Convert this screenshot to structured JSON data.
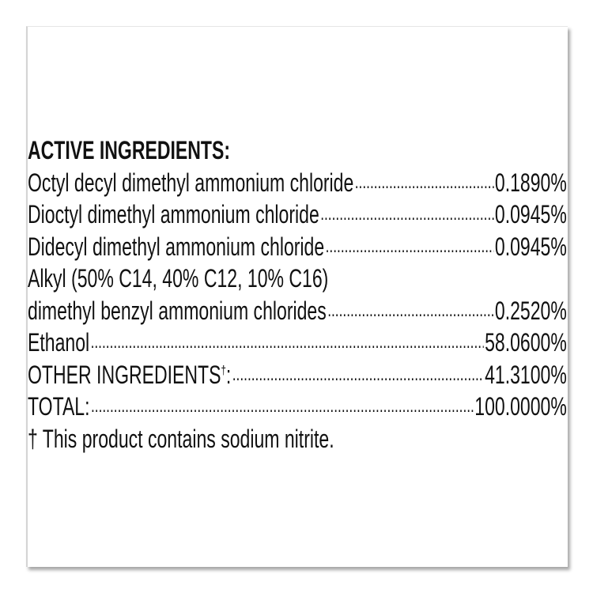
{
  "heading": "ACTIVE INGREDIENTS:",
  "ingredients": [
    {
      "name": "Octyl decyl dimethyl ammonium chloride",
      "value": "0.1890%"
    },
    {
      "name": "Dioctyl dimethyl ammonium chloride",
      "value": "0.0945%"
    },
    {
      "name": "Didecyl dimethyl ammonium chloride",
      "value": "0.0945%"
    },
    {
      "name_line1": "Alkyl (50% C14, 40% C12, 10% C16)",
      "name": "dimethyl benzyl ammonium chlorides",
      "value": "0.2520%"
    },
    {
      "name": "Ethanol",
      "value": "58.0600%"
    }
  ],
  "other": {
    "name": "OTHER INGREDIENTS",
    "mark": "†",
    "colon": ":",
    "value": "41.3100%"
  },
  "total": {
    "name": "TOTAL:",
    "value": "100.0000%"
  },
  "footnote": "† This product contains sodium nitrite."
}
